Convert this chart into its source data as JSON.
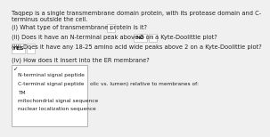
{
  "bg_color": "#f0f0f0",
  "header_line1": "Taqpep is a single transmembrane domain protein, with its protease domain and C-",
  "header_line2": "terminus outside the cell.",
  "q1_label": "(i) What type of transmembrane protein is it?",
  "q1_box_text": "II",
  "q2_label": "(ii) Does it have an N-terminal peak above 2 on a Kyte-Doolittle plot?",
  "q2_ans": "NO",
  "q2_box_text": "II",
  "q3_label": "(iii) Does it have any 18-25 amino acid wide peaks above 2 on a Kyte-Doolittle plot?",
  "q3_ans": "YES",
  "q3_box_text": "II",
  "q4_label": "(iv) How does it insert into the ER membrane?",
  "dropdown_check": "✓",
  "dropdown_items": [
    "N-terminal signal peptide",
    "C-terminal signal peptide",
    "TM",
    "mitochondrial signal sequence",
    "nuclear localization sequence"
  ],
  "side_text": "olic vs. lumen) relative to membranes of:",
  "text_color": "#222222",
  "box_edge_color": "#aaaaaa",
  "dropdown_bg": "#ffffff",
  "dropdown_edge": "#999999",
  "fs": 4.8,
  "fs_small": 4.2
}
